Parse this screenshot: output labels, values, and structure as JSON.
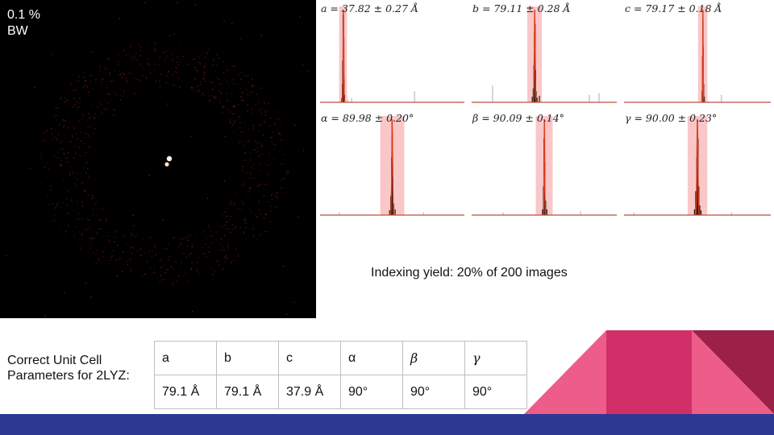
{
  "detector_image": {
    "label": "0.1 %\nBW"
  },
  "chart_data": [
    {
      "type": "bar",
      "title": "a = 37.82 ± 0.27 Å",
      "range": [
        20,
        130
      ],
      "bins": [
        [
          36.6,
          0.05
        ],
        [
          37.0,
          0.2
        ],
        [
          37.2,
          0.45
        ],
        [
          37.5,
          0.95
        ],
        [
          37.8,
          1.0
        ],
        [
          38.1,
          0.7
        ],
        [
          38.4,
          0.25
        ],
        [
          38.7,
          0.08
        ],
        [
          41,
          0.03
        ],
        [
          44,
          0.05
        ],
        [
          92,
          0.12
        ]
      ],
      "fit_center": 37.82,
      "fit_sigma": 0.27,
      "shaded": [
        34.5,
        40.5
      ]
    },
    {
      "type": "bar",
      "title": "b = 79.11 ± 0.28 Å",
      "range": [
        40,
        130
      ],
      "bins": [
        [
          77.6,
          0.06
        ],
        [
          78.2,
          0.15
        ],
        [
          78.6,
          0.4
        ],
        [
          78.9,
          0.75
        ],
        [
          79.1,
          1.0
        ],
        [
          79.4,
          0.85
        ],
        [
          79.7,
          0.35
        ],
        [
          80.0,
          0.12
        ],
        [
          80.6,
          0.05
        ],
        [
          82.0,
          0.07
        ],
        [
          53,
          0.18
        ],
        [
          113,
          0.08
        ],
        [
          119,
          0.1
        ]
      ],
      "fit_center": 79.11,
      "fit_sigma": 0.28,
      "shaded": [
        74.5,
        83.5
      ]
    },
    {
      "type": "bar",
      "title": "c = 79.17 ± 0.18 Å",
      "range": [
        20,
        130
      ],
      "bins": [
        [
          78.5,
          0.12
        ],
        [
          78.8,
          0.5
        ],
        [
          79.0,
          0.9
        ],
        [
          79.2,
          1.0
        ],
        [
          79.4,
          0.6
        ],
        [
          79.7,
          0.2
        ],
        [
          80.2,
          0.06
        ],
        [
          93,
          0.08
        ]
      ],
      "fit_center": 79.17,
      "fit_sigma": 0.18,
      "shaded": [
        75.5,
        82.5
      ]
    },
    {
      "type": "bar",
      "title": "α = 89.98 ± 0.20°",
      "range": [
        60,
        120
      ],
      "bins": [
        [
          88.9,
          0.05
        ],
        [
          89.4,
          0.2
        ],
        [
          89.7,
          0.6
        ],
        [
          89.9,
          1.0
        ],
        [
          90.1,
          0.85
        ],
        [
          90.3,
          0.4
        ],
        [
          90.6,
          0.12
        ],
        [
          91.2,
          0.06
        ],
        [
          68,
          0.03
        ],
        [
          103,
          0.03
        ]
      ],
      "fit_center": 89.98,
      "fit_sigma": 0.2,
      "shaded": [
        85,
        95
      ]
    },
    {
      "type": "bar",
      "title": "β = 90.09 ± 0.14°",
      "range": [
        60,
        120
      ],
      "bins": [
        [
          89.3,
          0.06
        ],
        [
          89.7,
          0.3
        ],
        [
          89.9,
          0.8
        ],
        [
          90.1,
          1.0
        ],
        [
          90.3,
          0.55
        ],
        [
          90.6,
          0.15
        ],
        [
          91.1,
          0.06
        ],
        [
          73,
          0.03
        ],
        [
          105,
          0.04
        ]
      ],
      "fit_center": 90.09,
      "fit_sigma": 0.14,
      "shaded": [
        86.5,
        93.5
      ]
    },
    {
      "type": "bar",
      "title": "γ = 90.00 ± 0.23°",
      "range": [
        60,
        120
      ],
      "bins": [
        [
          88.8,
          0.06
        ],
        [
          89.3,
          0.25
        ],
        [
          89.7,
          0.6
        ],
        [
          90.0,
          1.0
        ],
        [
          90.3,
          0.8
        ],
        [
          90.6,
          0.3
        ],
        [
          91.0,
          0.1
        ],
        [
          91.5,
          0.05
        ],
        [
          64,
          0.03
        ],
        [
          104,
          0.03
        ]
      ],
      "fit_center": 90.0,
      "fit_sigma": 0.23,
      "shaded": [
        86,
        94
      ]
    }
  ],
  "indexing_yield": "Indexing yield: 20% of 200 images",
  "unit_cell": {
    "caption": "Correct Unit Cell\nParameters for 2LYZ:",
    "headers": [
      "a",
      "b",
      "c",
      "α",
      "β",
      "γ"
    ],
    "values": [
      "79.1 Å",
      "79.1 Å",
      "37.9 Å",
      "90°",
      "90°",
      "90°"
    ]
  },
  "colors": {
    "shade": "#f9c7c8",
    "bar": "#2a1a12",
    "fit": "#e2401f",
    "axis": "#b5523d",
    "footer": "#2b3990",
    "deco_light": "#ee5c8a",
    "deco_mid": "#d12f67",
    "deco_dark": "#9b2146"
  }
}
